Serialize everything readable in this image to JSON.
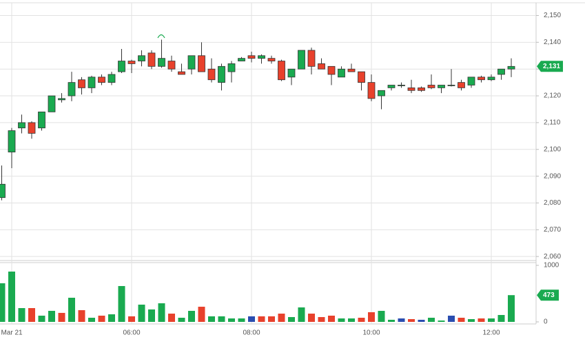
{
  "chart_data": {
    "type": "candlestick",
    "categories": [
      null,
      "Mar 21",
      null,
      null,
      null,
      null,
      null,
      null,
      null,
      null,
      null,
      null,
      null,
      "06:00",
      null,
      null,
      null,
      null,
      null,
      null,
      null,
      null,
      null,
      null,
      null,
      "08:00",
      null,
      null,
      null,
      null,
      null,
      null,
      null,
      null,
      null,
      null,
      null,
      "10:00",
      null,
      null,
      null,
      null,
      null,
      null,
      null,
      null,
      null,
      null,
      null,
      "12:00",
      null,
      null
    ],
    "open": [
      2082,
      2099,
      2108,
      2110,
      2108,
      2114,
      2118.5,
      2120,
      2126,
      2123,
      2127,
      2125,
      2129,
      2133,
      2133,
      2136,
      2131,
      2133,
      2129,
      2130,
      2135,
      2130,
      2125,
      2129,
      2133,
      2135,
      2134,
      2134,
      2133,
      2127,
      2130,
      2137,
      2132,
      2131,
      2127,
      2130,
      2129,
      2125,
      2120,
      2123,
      2124,
      2123,
      2123,
      2124,
      2123,
      2124,
      2125,
      2124,
      2127,
      2126,
      2128,
      2130
    ],
    "high": [
      2094,
      2108,
      2113,
      2110.5,
      2114,
      2120,
      2121,
      2129,
      2127,
      2127.5,
      2128,
      2129,
      2137.5,
      2133.5,
      2137,
      2137,
      2141,
      2135,
      2132,
      2135,
      2140,
      2134,
      2132,
      2133,
      2134.5,
      2136.5,
      2135.5,
      2135,
      2133.5,
      2130,
      2137,
      2138,
      2134,
      2131,
      2131,
      2132,
      2129,
      2128,
      2122,
      2124,
      2125,
      2126,
      2123.5,
      2128,
      2124,
      2130,
      2126,
      2127,
      2127.5,
      2128,
      2130,
      2134
    ],
    "low": [
      2081,
      2093,
      2106,
      2104,
      2107,
      2114,
      2117.5,
      2118,
      2120.5,
      2121,
      2124,
      2124,
      2128.5,
      2128.5,
      2131,
      2130,
      2130.5,
      2129,
      2128,
      2128,
      2129,
      2125,
      2122,
      2125,
      2133,
      2132.5,
      2132,
      2132,
      2125.5,
      2124,
      2130,
      2128,
      2130,
      2124,
      2127,
      2129,
      2122,
      2118,
      2115,
      2122,
      2123,
      2121,
      2121.5,
      2122.5,
      2121,
      2123.5,
      2122,
      2123,
      2125,
      2125.5,
      2126,
      2127
    ],
    "close": [
      2087,
      2107,
      2110,
      2106,
      2114,
      2120,
      2119,
      2125,
      2123,
      2127,
      2125,
      2128,
      2133,
      2132,
      2135,
      2131,
      2134,
      2130,
      2128,
      2135,
      2129,
      2126,
      2131,
      2132,
      2134,
      2134,
      2135,
      2133,
      2126,
      2130,
      2137,
      2131,
      2130,
      2128,
      2130,
      2129,
      2125,
      2119,
      2122,
      2124,
      2124,
      2122,
      2122,
      2123,
      2124,
      2124,
      2123,
      2127,
      2126,
      2127,
      2130,
      2131
    ],
    "up_color": "#1aaa50",
    "down_color": "#e8412c",
    "ylim": [
      2058.5,
      2154.5
    ],
    "yticks": [
      {
        "value": 2060,
        "label": "2,060"
      },
      {
        "value": 2070,
        "label": "2,070"
      },
      {
        "value": 2080,
        "label": "2,080"
      },
      {
        "value": 2090,
        "label": "2,090"
      },
      {
        "value": 2100,
        "label": "2,100"
      },
      {
        "value": 2110,
        "label": "2,110"
      },
      {
        "value": 2120,
        "label": "2,120"
      },
      {
        "value": 2130,
        "label": "2,130"
      },
      {
        "value": 2140,
        "label": "2,140"
      },
      {
        "value": 2150,
        "label": "2,150"
      }
    ],
    "current_price": {
      "value": 2131,
      "label": "2,131"
    },
    "grid": true,
    "volume": {
      "values": [
        683,
        890,
        244,
        244,
        110,
        195,
        159,
        427,
        207,
        73,
        110,
        134,
        634,
        98,
        305,
        220,
        329,
        146,
        73,
        195,
        268,
        98,
        98,
        61,
        61,
        98,
        98,
        98,
        146,
        85,
        256,
        146,
        85,
        110,
        61,
        61,
        73,
        171,
        195,
        37,
        61,
        49,
        37,
        73,
        24,
        110,
        73,
        49,
        61,
        61,
        122,
        473
      ],
      "colors": [
        "#1aaa50",
        "#1aaa50",
        "#1aaa50",
        "#e8412c",
        "#1aaa50",
        "#1aaa50",
        "#e8412c",
        "#1aaa50",
        "#e8412c",
        "#1aaa50",
        "#e8412c",
        "#1aaa50",
        "#1aaa50",
        "#e8412c",
        "#1aaa50",
        "#1aaa50",
        "#1aaa50",
        "#e8412c",
        "#1aaa50",
        "#1aaa50",
        "#e8412c",
        "#1aaa50",
        "#1aaa50",
        "#1aaa50",
        "#1aaa50",
        "#2a4db0",
        "#e8412c",
        "#e8412c",
        "#e8412c",
        "#1aaa50",
        "#1aaa50",
        "#e8412c",
        "#e8412c",
        "#e8412c",
        "#1aaa50",
        "#1aaa50",
        "#e8412c",
        "#e8412c",
        "#1aaa50",
        "#1aaa50",
        "#2a4db0",
        "#e8412c",
        "#2a4db0",
        "#1aaa50",
        "#1aaa50",
        "#2a4db0",
        "#e8412c",
        "#1aaa50",
        "#e8412c",
        "#1aaa50",
        "#1aaa50",
        "#1aaa50"
      ],
      "ylim": [
        0,
        1000
      ],
      "yticks": [
        0,
        1000
      ]
    }
  }
}
